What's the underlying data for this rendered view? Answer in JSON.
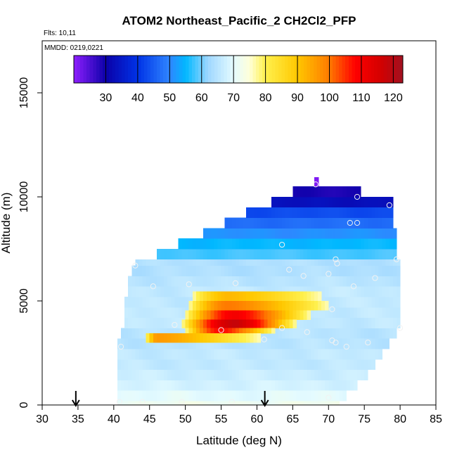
{
  "chart_data": {
    "type": "heatmap",
    "title": "ATOM2 Northeast_Pacific_2 CH2Cl2_PFP",
    "flights_note": "Flts: 10,11",
    "date_note": "MMDD: 0219,0221",
    "xlabel": "Latitude (deg N)",
    "ylabel": "Altitude (m)",
    "xlim": [
      30,
      85
    ],
    "ylim": [
      0,
      17500
    ],
    "x_ticks": [
      "30",
      "35",
      "40",
      "45",
      "50",
      "55",
      "60",
      "65",
      "70",
      "75",
      "80",
      "85"
    ],
    "y_ticks": [
      "0",
      "5000",
      "10000",
      "15000"
    ],
    "colorbar": {
      "range": [
        20,
        123
      ],
      "ticks": [
        "30",
        "40",
        "50",
        "60",
        "70",
        "80",
        "90",
        "100",
        "110",
        "120"
      ],
      "stops": [
        {
          "v": 20,
          "c": "#8f1fff"
        },
        {
          "v": 30,
          "c": "#0b00a8"
        },
        {
          "v": 40,
          "c": "#0032e6"
        },
        {
          "v": 50,
          "c": "#2f86ff"
        },
        {
          "v": 55,
          "c": "#00b8ff"
        },
        {
          "v": 62,
          "c": "#9fd7ff"
        },
        {
          "v": 70,
          "c": "#e4fbff"
        },
        {
          "v": 75,
          "c": "#ffffd9"
        },
        {
          "v": 80,
          "c": "#fff04d"
        },
        {
          "v": 90,
          "c": "#ffc800"
        },
        {
          "v": 100,
          "c": "#ff7a00"
        },
        {
          "v": 108,
          "c": "#ff0000"
        },
        {
          "v": 116,
          "c": "#d40000"
        },
        {
          "v": 123,
          "c": "#a01020"
        }
      ]
    },
    "altitude_bands": [
      {
        "y0": 0,
        "y1": 200,
        "x0": 40.5,
        "x1": 71.5,
        "value": 72
      },
      {
        "y0": 200,
        "y1": 700,
        "x0": 40.5,
        "x1": 72.5,
        "value": 70
      },
      {
        "y0": 700,
        "y1": 1200,
        "x0": 40.5,
        "x1": 74.0,
        "value": 68
      },
      {
        "y0": 1200,
        "y1": 1700,
        "x0": 40.5,
        "x1": 75.5,
        "value": 67
      },
      {
        "y0": 1700,
        "y1": 2200,
        "x0": 40.5,
        "x1": 76.5,
        "value": 66
      },
      {
        "y0": 2200,
        "y1": 2700,
        "x0": 40.5,
        "x1": 77.5,
        "value": 66
      },
      {
        "y0": 2700,
        "y1": 3200,
        "x0": 40.5,
        "x1": 78.5,
        "value": 65
      },
      {
        "y0": 3200,
        "y1": 3700,
        "x0": 41.0,
        "x1": 79.5,
        "value": 65
      },
      {
        "y0": 3700,
        "y1": 4200,
        "x0": 41.5,
        "x1": 80.0,
        "value": 66
      },
      {
        "y0": 4200,
        "y1": 4700,
        "x0": 41.5,
        "x1": 80.0,
        "value": 66
      },
      {
        "y0": 4700,
        "y1": 5200,
        "x0": 41.5,
        "x1": 80.0,
        "value": 66
      },
      {
        "y0": 5200,
        "y1": 5700,
        "x0": 42.0,
        "x1": 80.0,
        "value": 66
      },
      {
        "y0": 5700,
        "y1": 6200,
        "x0": 42.0,
        "x1": 80.0,
        "value": 65
      },
      {
        "y0": 6200,
        "y1": 6700,
        "x0": 42.5,
        "x1": 80.0,
        "value": 64
      },
      {
        "y0": 6700,
        "y1": 7000,
        "x0": 43.0,
        "x1": 80.0,
        "value": 64
      },
      {
        "y0": 7000,
        "y1": 7500,
        "x0": 46.0,
        "x1": 79.5,
        "value": 58
      },
      {
        "y0": 7500,
        "y1": 8000,
        "x0": 49.0,
        "x1": 79.5,
        "value": 55
      },
      {
        "y0": 8000,
        "y1": 8500,
        "x0": 52.5,
        "x1": 79.5,
        "value": 51
      },
      {
        "y0": 8500,
        "y1": 9000,
        "x0": 55.5,
        "x1": 79.0,
        "value": 47
      },
      {
        "y0": 9000,
        "y1": 9500,
        "x0": 58.5,
        "x1": 79.0,
        "value": 43
      },
      {
        "y0": 9500,
        "y1": 10000,
        "x0": 62.0,
        "x1": 79.0,
        "value": 33
      },
      {
        "y0": 10000,
        "y1": 10500,
        "x0": 65.0,
        "x1": 74.5,
        "value": 29
      },
      {
        "y0": 10500,
        "y1": 10950,
        "x0": 68.0,
        "x1": 68.6,
        "value": 22
      }
    ],
    "enhanced_layer": [
      {
        "y0": 5000,
        "y1": 5450,
        "x0": 51.0,
        "x1": 69.0,
        "peak": 92,
        "peak_x": 56
      },
      {
        "y0": 4550,
        "y1": 5000,
        "x0": 50.5,
        "x1": 70.0,
        "peak": 100,
        "peak_x": 56
      },
      {
        "y0": 4100,
        "y1": 4550,
        "x0": 50.0,
        "x1": 67.5,
        "peak": 110,
        "peak_x": 57
      },
      {
        "y0": 3700,
        "y1": 4100,
        "x0": 49.5,
        "x1": 65.5,
        "peak": 118,
        "peak_x": 57
      },
      {
        "y0": 3450,
        "y1": 3700,
        "x0": 50.0,
        "x1": 62.5,
        "peak": 108,
        "peak_x": 55
      },
      {
        "y0": 3000,
        "y1": 3450,
        "x0": 44.5,
        "x1": 60.5,
        "peak": 96,
        "peak_x": 46
      }
    ],
    "sample_points": [
      {
        "x": 40.8,
        "y": 150
      },
      {
        "x": 44.0,
        "y": 150
      },
      {
        "x": 49.5,
        "y": 150
      },
      {
        "x": 56.5,
        "y": 150
      },
      {
        "x": 70.0,
        "y": 350
      },
      {
        "x": 41.0,
        "y": 2800
      },
      {
        "x": 61.0,
        "y": 3150
      },
      {
        "x": 63.5,
        "y": 3700
      },
      {
        "x": 67.0,
        "y": 3500
      },
      {
        "x": 70.5,
        "y": 3100
      },
      {
        "x": 71.0,
        "y": 3000
      },
      {
        "x": 72.5,
        "y": 2800
      },
      {
        "x": 75.5,
        "y": 3000
      },
      {
        "x": 48.5,
        "y": 3850
      },
      {
        "x": 55.0,
        "y": 3600
      },
      {
        "x": 70.5,
        "y": 4600
      },
      {
        "x": 80.0,
        "y": 3700
      },
      {
        "x": 45.5,
        "y": 5700
      },
      {
        "x": 50.5,
        "y": 5800
      },
      {
        "x": 57.0,
        "y": 5850
      },
      {
        "x": 70.0,
        "y": 6300
      },
      {
        "x": 73.5,
        "y": 5700
      },
      {
        "x": 76.5,
        "y": 6100
      },
      {
        "x": 43.0,
        "y": 6700
      },
      {
        "x": 64.5,
        "y": 6500
      },
      {
        "x": 66.5,
        "y": 6200
      },
      {
        "x": 71.0,
        "y": 7000
      },
      {
        "x": 71.2,
        "y": 6800
      },
      {
        "x": 79.5,
        "y": 7000
      },
      {
        "x": 63.5,
        "y": 7700
      },
      {
        "x": 73.0,
        "y": 8750
      },
      {
        "x": 74.0,
        "y": 8750
      },
      {
        "x": 74.0,
        "y": 10000
      },
      {
        "x": 78.5,
        "y": 9600
      },
      {
        "x": 68.2,
        "y": 10600
      }
    ],
    "flight_arrows": [
      {
        "x": 34.7
      },
      {
        "x": 61.1
      }
    ]
  }
}
